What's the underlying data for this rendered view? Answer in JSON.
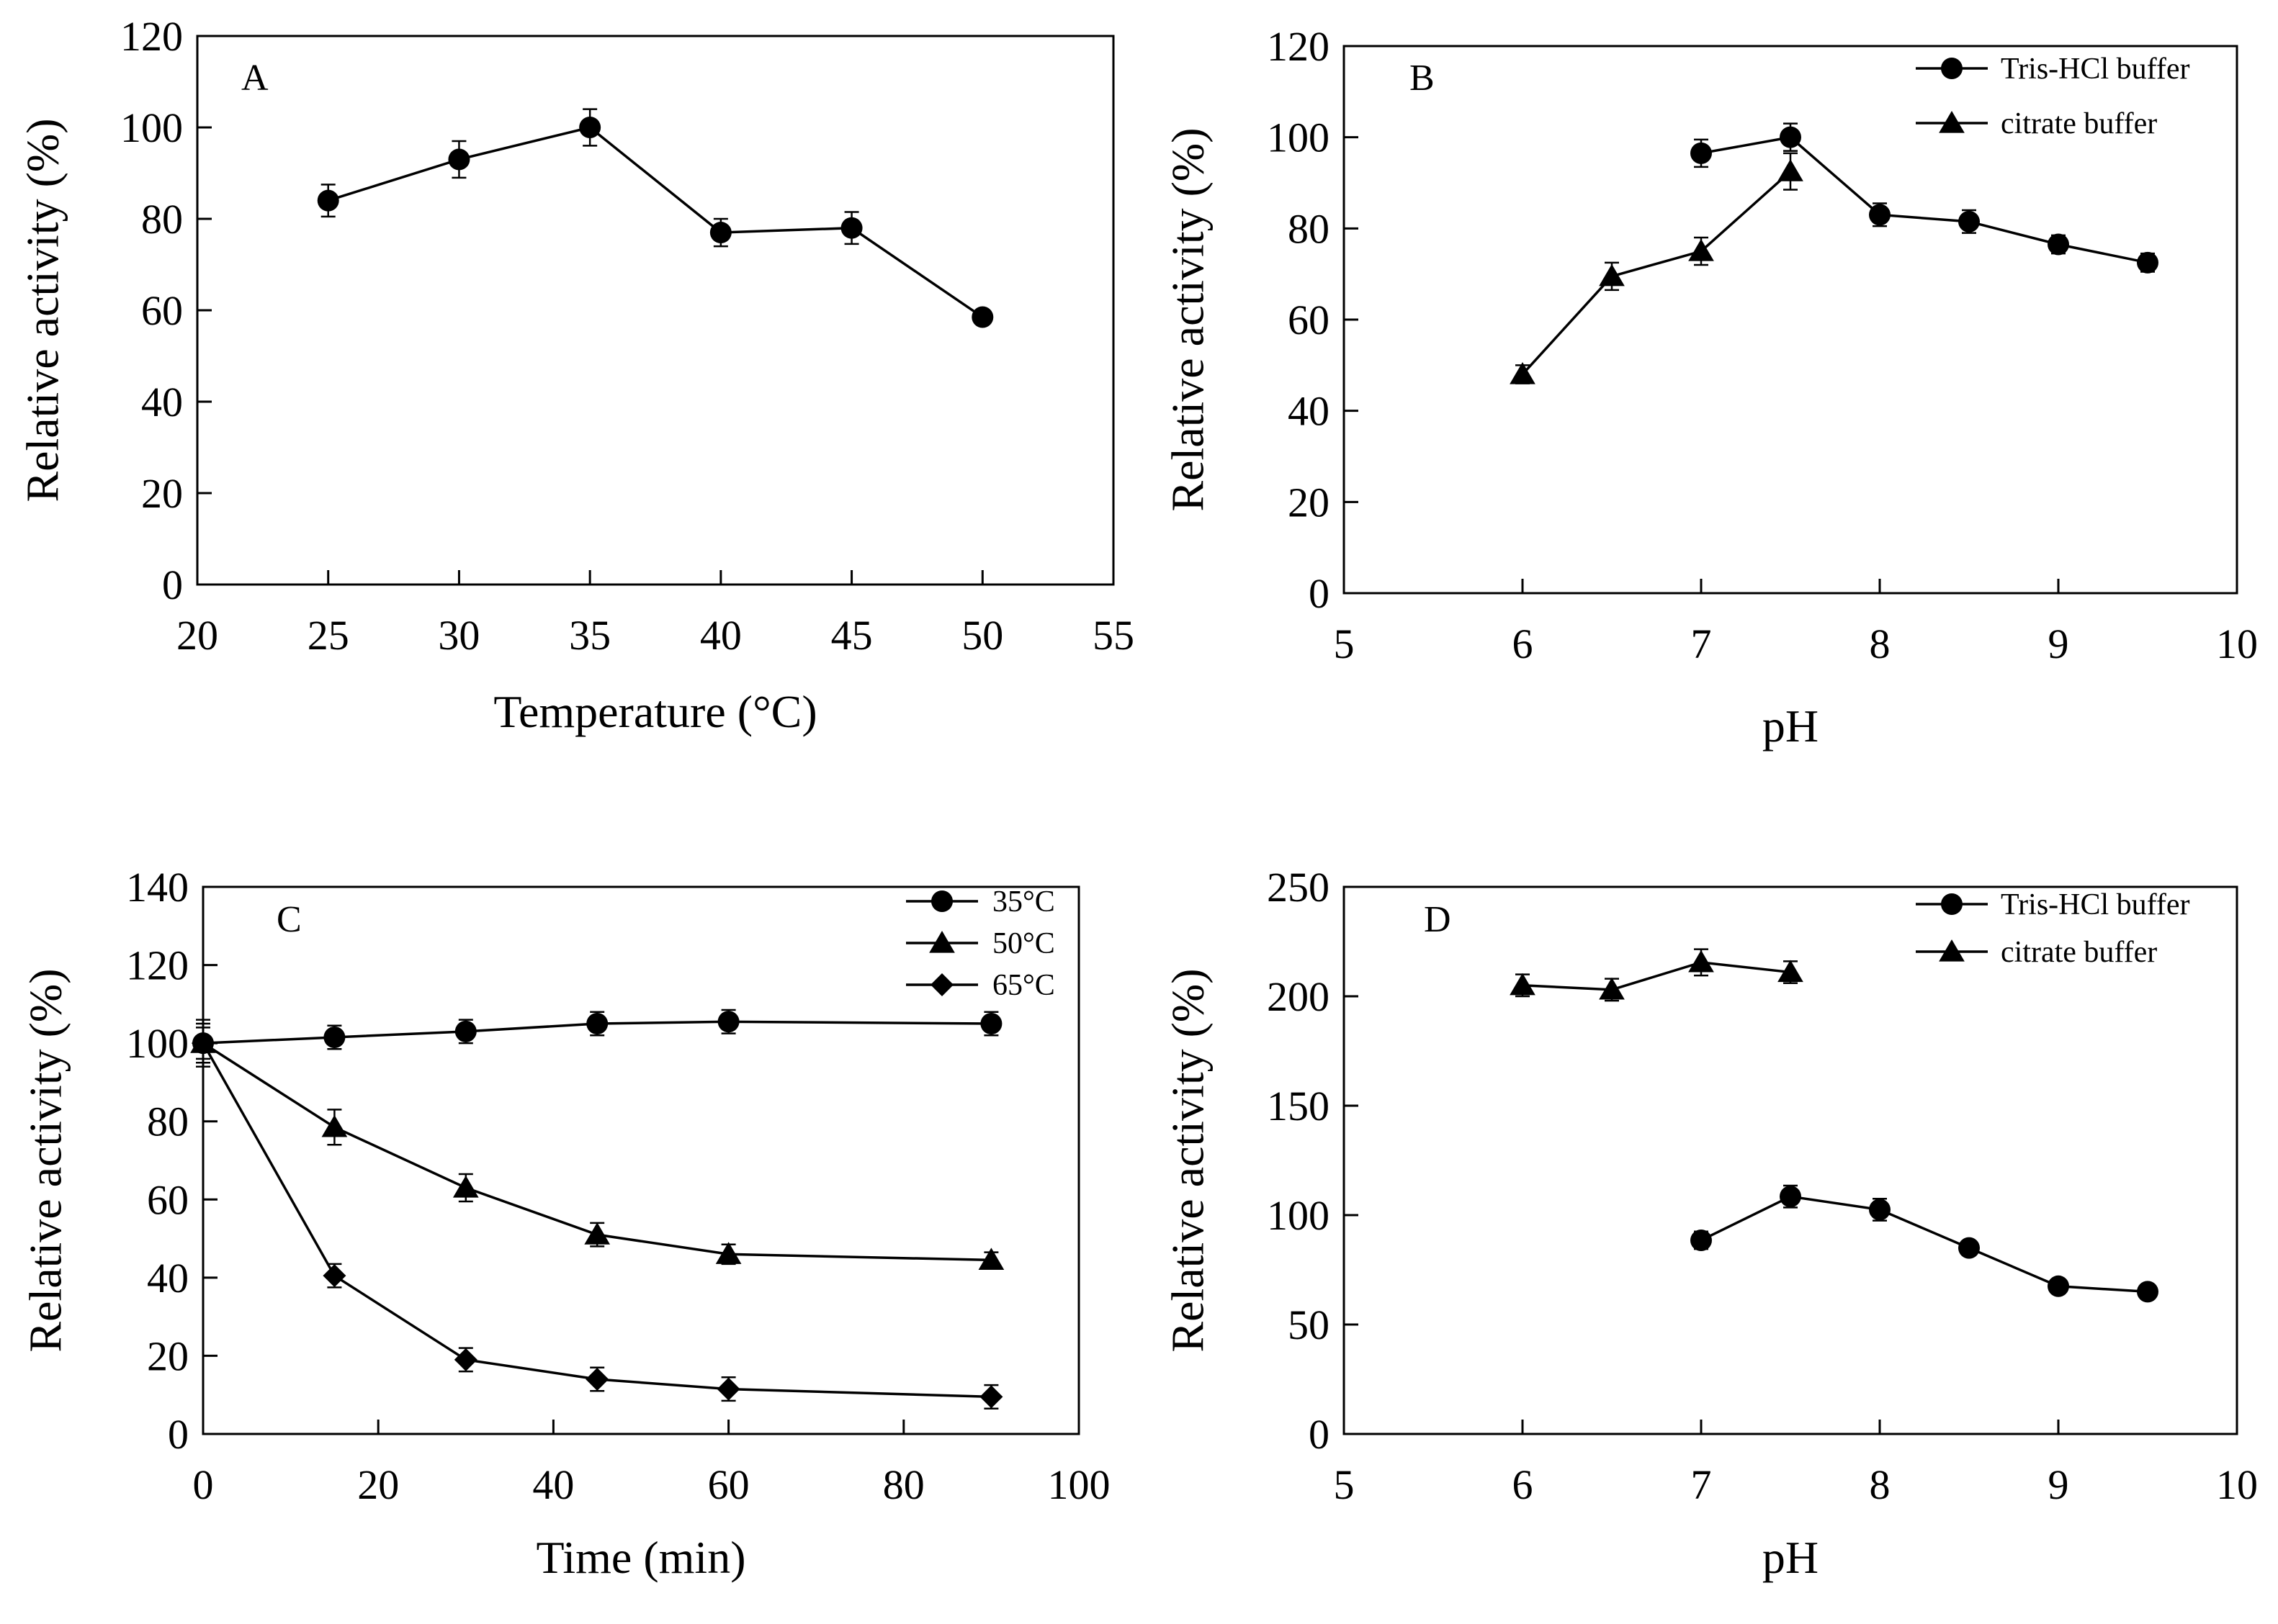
{
  "chart_data": [
    {
      "panel": "A",
      "type": "line",
      "xlabel": "Temperature (°C)",
      "ylabel": "Relative activity (%)",
      "xlim": [
        20,
        55
      ],
      "ylim": [
        0,
        120
      ],
      "xticks": [
        20,
        25,
        30,
        35,
        40,
        45,
        50,
        55
      ],
      "yticks": [
        0,
        20,
        40,
        60,
        80,
        100,
        120
      ],
      "legend": false,
      "series": [
        {
          "name": "",
          "marker": "circle",
          "x": [
            25,
            30,
            35,
            40,
            45,
            50
          ],
          "values": [
            84,
            93,
            100,
            77,
            78,
            58.5
          ],
          "errors": [
            3.5,
            4,
            4,
            3,
            3.5,
            1.5
          ]
        }
      ]
    },
    {
      "panel": "B",
      "type": "line",
      "xlabel": "pH",
      "ylabel": "Relative activity (%)",
      "xlim": [
        5,
        10
      ],
      "ylim": [
        0,
        120
      ],
      "xticks": [
        5,
        6,
        7,
        8,
        9,
        10
      ],
      "yticks": [
        0,
        20,
        40,
        60,
        80,
        100,
        120
      ],
      "legend": true,
      "legend_position": "top-right",
      "series": [
        {
          "name": "Tris-HCl buffer",
          "marker": "circle",
          "x": [
            7,
            7.5,
            8,
            8.5,
            9,
            9.5
          ],
          "values": [
            96.5,
            100,
            83,
            81.5,
            76.5,
            72.5
          ],
          "errors": [
            3,
            3,
            2.5,
            2.5,
            2,
            2
          ]
        },
        {
          "name": "citrate buffer",
          "marker": "triangle",
          "x": [
            6,
            6.5,
            7,
            7.5
          ],
          "values": [
            48,
            69.5,
            75,
            92.5
          ],
          "errors": [
            2,
            3,
            3,
            4
          ]
        }
      ]
    },
    {
      "panel": "C",
      "type": "line",
      "xlabel": "Time (min)",
      "ylabel": "Relative activity (%)",
      "xlim": [
        0,
        100
      ],
      "ylim": [
        0,
        140
      ],
      "xticks": [
        0,
        20,
        40,
        60,
        80,
        100
      ],
      "yticks": [
        0,
        20,
        40,
        60,
        80,
        100,
        120,
        140
      ],
      "legend": true,
      "legend_position": "top-right",
      "series": [
        {
          "name": "35°C",
          "marker": "circle",
          "x": [
            0,
            15,
            30,
            45,
            60,
            90
          ],
          "values": [
            100,
            101.5,
            103,
            105,
            105.5,
            105
          ],
          "errors": [
            6,
            3,
            3,
            3,
            3,
            3
          ]
        },
        {
          "name": "50°C",
          "marker": "triangle",
          "x": [
            0,
            15,
            30,
            45,
            60,
            90
          ],
          "values": [
            100,
            78.5,
            63,
            51,
            46,
            44.5
          ],
          "errors": [
            5,
            4.5,
            3.5,
            3,
            2.5,
            2
          ]
        },
        {
          "name": "65°C",
          "marker": "diamond",
          "x": [
            0,
            15,
            30,
            45,
            60,
            90
          ],
          "values": [
            100,
            40.5,
            19,
            14,
            11.5,
            9.5
          ],
          "errors": [
            4,
            3,
            3,
            3,
            3,
            3
          ]
        }
      ]
    },
    {
      "panel": "D",
      "type": "line",
      "xlabel": "pH",
      "ylabel": "Relative activity (%)",
      "xlim": [
        5,
        10
      ],
      "ylim": [
        0,
        250
      ],
      "xticks": [
        5,
        6,
        7,
        8,
        9,
        10
      ],
      "yticks": [
        0,
        50,
        100,
        150,
        200,
        250
      ],
      "legend": true,
      "legend_position": "top-right",
      "series": [
        {
          "name": "Tris-HCl buffer",
          "marker": "circle",
          "x": [
            7,
            7.5,
            8,
            8.5,
            9,
            9.5
          ],
          "values": [
            88.5,
            108.5,
            102.5,
            85,
            67.5,
            65
          ],
          "errors": [
            4,
            5,
            5,
            3,
            2,
            2
          ]
        },
        {
          "name": "citrate buffer",
          "marker": "triangle",
          "x": [
            6,
            6.5,
            7,
            7.5
          ],
          "values": [
            205,
            203,
            215.5,
            211
          ],
          "errors": [
            5,
            5,
            6,
            5
          ]
        }
      ]
    }
  ]
}
